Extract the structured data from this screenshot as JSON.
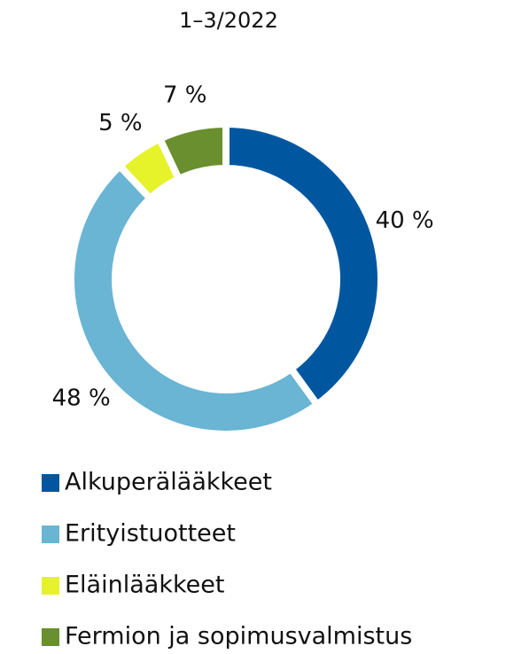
{
  "chart_data": {
    "type": "donut",
    "title": "1–3/2022",
    "categories": [
      "Alkuperälääkkeet",
      "Erityistuotteet",
      "Eläinlääkkeet",
      "Fermion ja sopimusvalmistus"
    ],
    "values": [
      40,
      48,
      5,
      7
    ],
    "value_labels": [
      "40 %",
      "48 %",
      "5 %",
      "7 %"
    ],
    "colors": [
      "#0057a0",
      "#6ab4d4",
      "#e6f22a",
      "#6a8f2e"
    ],
    "legend": "bottom"
  }
}
